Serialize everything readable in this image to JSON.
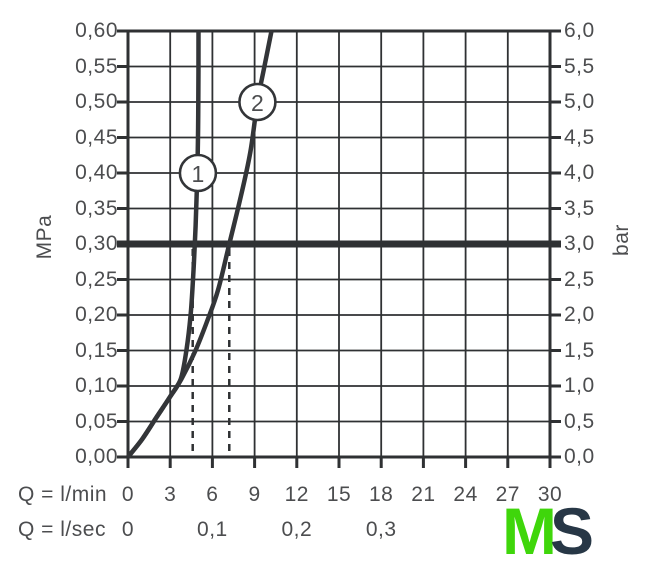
{
  "colors": {
    "line": "#2f3133",
    "curve": "#333538",
    "label": "#4c4d4f",
    "background": "#ffffff",
    "marker_fill": "#ffffff",
    "logo_m": "#3fd60b",
    "logo_s": "#273746"
  },
  "logo": {
    "m": "M",
    "s": "S"
  },
  "chart_data": {
    "type": "line",
    "title": "",
    "x_axis": {
      "title_row1": "Q = l/min",
      "title_row2": "Q = l/sec",
      "min": 0,
      "max": 30,
      "step": 3,
      "tick_labels_lmin": [
        "0",
        "3",
        "6",
        "9",
        "12",
        "15",
        "18",
        "21",
        "24",
        "27",
        "30"
      ],
      "tick_labels_lsec": [
        {
          "label": "0",
          "q": 0
        },
        {
          "label": "0,1",
          "q": 6
        },
        {
          "label": "0,2",
          "q": 12
        },
        {
          "label": "0,3",
          "q": 18
        }
      ]
    },
    "y_axis_left": {
      "title": "MPa",
      "min": 0,
      "max": 0.6,
      "step": 0.05,
      "tick_labels": [
        "0,60",
        "0,55",
        "0,50",
        "0,45",
        "0,40",
        "0,35",
        "0,30",
        "0,25",
        "0,20",
        "0,15",
        "0,10",
        "0,05",
        "0,00"
      ]
    },
    "y_axis_right": {
      "title": "bar",
      "min": 0,
      "max": 6,
      "step": 0.5,
      "tick_labels": [
        "6,0",
        "5,5",
        "5,0",
        "4,5",
        "4,0",
        "3,5",
        "3,0",
        "2,5",
        "2,0",
        "1,5",
        "1,0",
        "0,5",
        "0,0"
      ]
    },
    "grid": true,
    "reference_line": {
      "mpa": 0.3,
      "bar": 3.0
    },
    "dashed_guides_q_lmin": [
      4.6,
      7.2
    ],
    "series": [
      {
        "name": "1",
        "marker_at": {
          "q": 4.97,
          "mpa": 0.4
        },
        "points": [
          [
            0,
            0
          ],
          [
            1,
            0.025
          ],
          [
            2,
            0.055
          ],
          [
            3,
            0.085
          ],
          [
            3.75,
            0.11
          ],
          [
            4.15,
            0.15
          ],
          [
            4.45,
            0.2
          ],
          [
            4.62,
            0.25
          ],
          [
            4.75,
            0.3
          ],
          [
            4.85,
            0.35
          ],
          [
            4.95,
            0.42
          ],
          [
            5.0,
            0.5
          ],
          [
            5.01,
            0.6
          ]
        ]
      },
      {
        "name": "2",
        "marker_at": {
          "q": 9.2,
          "mpa": 0.5
        },
        "points": [
          [
            0,
            0
          ],
          [
            1,
            0.025
          ],
          [
            2,
            0.055
          ],
          [
            3,
            0.085
          ],
          [
            3.8,
            0.11
          ],
          [
            4.8,
            0.15
          ],
          [
            5.6,
            0.19
          ],
          [
            6.4,
            0.235
          ],
          [
            7.2,
            0.3
          ],
          [
            8.0,
            0.365
          ],
          [
            8.7,
            0.43
          ],
          [
            9.2,
            0.5
          ],
          [
            9.7,
            0.55
          ],
          [
            10.2,
            0.6
          ]
        ]
      }
    ]
  }
}
